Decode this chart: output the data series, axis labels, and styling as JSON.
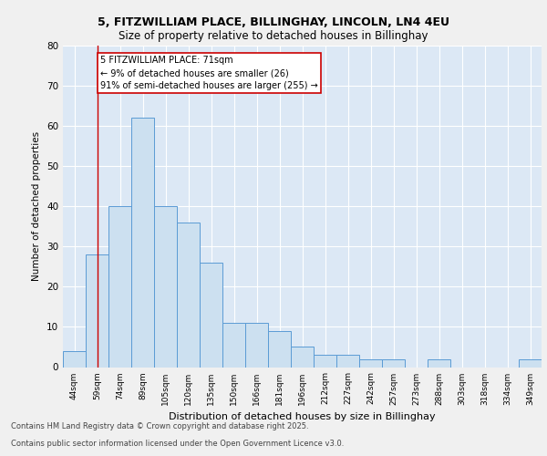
{
  "title1": "5, FITZWILLIAM PLACE, BILLINGHAY, LINCOLN, LN4 4EU",
  "title2": "Size of property relative to detached houses in Billinghay",
  "xlabel": "Distribution of detached houses by size in Billinghay",
  "ylabel": "Number of detached properties",
  "categories": [
    "44sqm",
    "59sqm",
    "74sqm",
    "89sqm",
    "105sqm",
    "120sqm",
    "135sqm",
    "150sqm",
    "166sqm",
    "181sqm",
    "196sqm",
    "212sqm",
    "227sqm",
    "242sqm",
    "257sqm",
    "273sqm",
    "288sqm",
    "303sqm",
    "318sqm",
    "334sqm",
    "349sqm"
  ],
  "values": [
    4,
    28,
    40,
    62,
    40,
    36,
    26,
    11,
    11,
    9,
    5,
    3,
    3,
    2,
    2,
    0,
    2,
    0,
    0,
    0,
    2
  ],
  "bar_color": "#cce0f0",
  "bar_edge_color": "#5b9bd5",
  "background_color": "#dce8f5",
  "grid_color": "#ffffff",
  "red_line_x": 1.0,
  "annotation_text": "5 FITZWILLIAM PLACE: 71sqm\n← 9% of detached houses are smaller (26)\n91% of semi-detached houses are larger (255) →",
  "annotation_box_color": "#ffffff",
  "annotation_box_edge": "#cc0000",
  "ylim": [
    0,
    80
  ],
  "yticks": [
    0,
    10,
    20,
    30,
    40,
    50,
    60,
    70,
    80
  ],
  "fig_bg": "#f0f0f0",
  "footnote1": "Contains HM Land Registry data © Crown copyright and database right 2025.",
  "footnote2": "Contains public sector information licensed under the Open Government Licence v3.0."
}
